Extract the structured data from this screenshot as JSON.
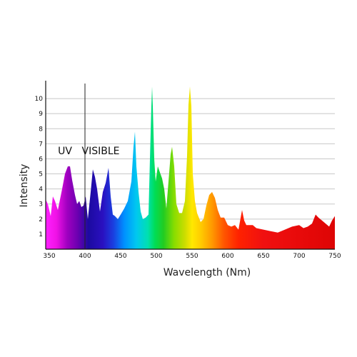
{
  "chart_data": {
    "type": "area",
    "title": "",
    "xlabel": "Wavelength (Nm)",
    "ylabel": "Intensity",
    "xlim": [
      345,
      750
    ],
    "ylim": [
      0,
      11
    ],
    "x_ticks": [
      350,
      400,
      450,
      500,
      550,
      600,
      650,
      700,
      750
    ],
    "y_ticks": [
      1,
      2,
      3,
      4,
      5,
      6,
      7,
      8,
      9,
      10
    ],
    "grid": "horizontal",
    "annotations": [
      {
        "text": "UV",
        "x": 372,
        "y": 6.3
      },
      {
        "text": "VISIBLE",
        "x": 422,
        "y": 6.3
      }
    ],
    "divider_x": 400,
    "fill": "visible spectrum rainbow gradient",
    "series": [
      {
        "x": [
          345,
          348,
          352,
          355,
          358,
          362,
          365,
          368,
          372,
          376,
          379,
          382,
          386,
          389,
          392,
          395,
          398,
          401,
          404,
          408,
          411,
          414,
          417,
          421,
          425,
          429,
          433,
          436,
          439,
          442,
          446,
          450,
          455,
          460,
          465,
          468,
          470,
          472,
          475,
          478,
          481,
          485,
          489,
          491,
          493,
          494,
          495,
          497,
          499,
          502,
          505,
          508,
          511,
          514,
          517,
          520,
          522,
          525,
          528,
          532,
          536,
          540,
          543,
          545,
          547,
          549,
          551,
          554,
          557,
          562,
          566,
          570,
          574,
          578,
          582,
          586,
          590,
          595,
          600,
          605,
          610,
          615,
          620,
          623,
          626,
          630,
          635,
          640,
          650,
          660,
          670,
          680,
          690,
          700,
          706,
          712,
          718,
          723,
          727,
          732,
          737,
          742,
          746,
          750
        ],
        "y": [
          3.3,
          3.0,
          2.2,
          3.5,
          3.2,
          2.6,
          3.3,
          4.0,
          5.0,
          5.5,
          5.5,
          4.6,
          3.6,
          3.0,
          3.2,
          2.8,
          2.9,
          3.5,
          2.0,
          3.8,
          5.3,
          4.8,
          4.0,
          2.5,
          3.8,
          4.4,
          5.4,
          3.5,
          2.3,
          2.2,
          2.0,
          2.3,
          2.7,
          3.2,
          4.5,
          6.8,
          7.8,
          5.5,
          3.8,
          2.5,
          2.0,
          2.1,
          2.3,
          6.0,
          9.5,
          10.8,
          9.5,
          6.0,
          4.5,
          5.5,
          5.1,
          4.7,
          4.0,
          2.7,
          4.5,
          6.3,
          6.8,
          5.5,
          3.0,
          2.4,
          2.4,
          3.2,
          6.2,
          9.6,
          10.8,
          9.5,
          5.0,
          3.2,
          2.4,
          1.8,
          2.0,
          2.9,
          3.6,
          3.8,
          3.4,
          2.6,
          2.1,
          2.1,
          1.6,
          1.5,
          1.6,
          1.3,
          2.6,
          1.9,
          1.6,
          1.6,
          1.6,
          1.4,
          1.3,
          1.2,
          1.1,
          1.3,
          1.5,
          1.6,
          1.4,
          1.5,
          1.7,
          2.3,
          2.1,
          1.9,
          1.7,
          1.5,
          1.9,
          2.2
        ]
      }
    ]
  }
}
